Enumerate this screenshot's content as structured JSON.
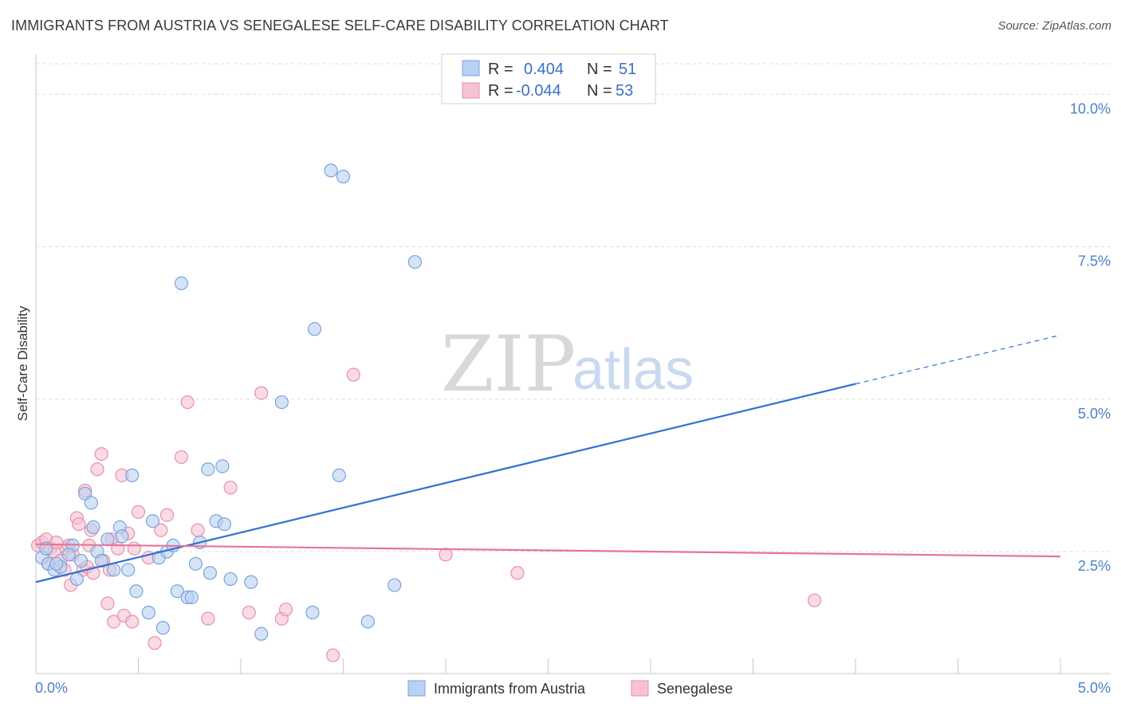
{
  "title": "IMMIGRANTS FROM AUSTRIA VS SENEGALESE SELF-CARE DISABILITY CORRELATION CHART",
  "source": "Source: ZipAtlas.com",
  "watermark": {
    "zip": "ZIP",
    "atlas": "atlas"
  },
  "colors": {
    "blue_fill": "#b9d1f2",
    "blue_stroke": "#7aa3dc",
    "blue_line": "#2f73d2",
    "pink_fill": "#f7c2d2",
    "pink_stroke": "#e691ac",
    "pink_line": "#e8739a",
    "tick_text": "#4a7fc8",
    "grid": "#dddddd"
  },
  "legend": {
    "rows": [
      {
        "r_label": "R =",
        "r_value": "0.404",
        "n_label": "N =",
        "n_value": "51"
      },
      {
        "r_label": "R =",
        "r_value": "-0.044",
        "n_label": "N =",
        "n_value": "53"
      }
    ]
  },
  "chart_data": {
    "type": "scatter",
    "title": "IMMIGRANTS FROM AUSTRIA VS SENEGALESE SELF-CARE DISABILITY CORRELATION CHART",
    "xlabel": "",
    "ylabel": "Self-Care Disability",
    "xlim": [
      0,
      5.0
    ],
    "ylim": [
      0.5,
      10.5
    ],
    "x_tick_labels": [
      "0.0%",
      "5.0%"
    ],
    "y_ticks": [
      2.5,
      5.0,
      7.5,
      10.0
    ],
    "y_tick_labels": [
      "2.5%",
      "5.0%",
      "7.5%",
      "10.0%"
    ],
    "legend_position": "bottom-center",
    "series": [
      {
        "name": "Immigrants from Austria",
        "r": 0.404,
        "n": 51,
        "trend": {
          "x0": 0.0,
          "y0": 2.0,
          "x1": 4.0,
          "y1": 5.25,
          "dash_to_x": 5.0,
          "dash_to_y": 6.05
        },
        "points": [
          [
            0.03,
            2.4
          ],
          [
            0.06,
            2.3
          ],
          [
            0.09,
            2.2
          ],
          [
            0.12,
            2.25
          ],
          [
            0.18,
            2.6
          ],
          [
            0.2,
            2.05
          ],
          [
            0.24,
            3.45
          ],
          [
            0.27,
            3.3
          ],
          [
            0.28,
            2.9
          ],
          [
            0.3,
            2.5
          ],
          [
            0.32,
            2.35
          ],
          [
            0.35,
            2.7
          ],
          [
            0.38,
            2.2
          ],
          [
            0.41,
            2.9
          ],
          [
            0.42,
            2.75
          ],
          [
            0.45,
            2.2
          ],
          [
            0.47,
            3.75
          ],
          [
            0.49,
            1.85
          ],
          [
            0.55,
            1.5
          ],
          [
            0.57,
            3.0
          ],
          [
            0.6,
            2.4
          ],
          [
            0.62,
            1.25
          ],
          [
            0.64,
            2.5
          ],
          [
            0.67,
            2.6
          ],
          [
            0.69,
            1.85
          ],
          [
            0.71,
            6.9
          ],
          [
            0.74,
            1.75
          ],
          [
            0.76,
            1.75
          ],
          [
            0.78,
            2.3
          ],
          [
            0.8,
            2.65
          ],
          [
            0.84,
            3.85
          ],
          [
            0.85,
            2.15
          ],
          [
            0.88,
            3.0
          ],
          [
            0.91,
            3.9
          ],
          [
            0.92,
            2.95
          ],
          [
            0.95,
            2.05
          ],
          [
            1.05,
            2.0
          ],
          [
            1.1,
            1.15
          ],
          [
            1.2,
            4.95
          ],
          [
            1.35,
            1.5
          ],
          [
            1.36,
            6.15
          ],
          [
            1.44,
            8.75
          ],
          [
            1.48,
            3.75
          ],
          [
            1.5,
            8.65
          ],
          [
            1.62,
            1.35
          ],
          [
            1.75,
            1.95
          ],
          [
            1.85,
            7.25
          ],
          [
            0.05,
            2.55
          ],
          [
            0.16,
            2.45
          ],
          [
            0.22,
            2.35
          ],
          [
            0.1,
            2.3
          ]
        ]
      },
      {
        "name": "Senegalese",
        "r": -0.044,
        "n": 53,
        "trend": {
          "x0": 0.0,
          "y0": 2.62,
          "x1": 5.0,
          "y1": 2.42
        },
        "points": [
          [
            0.01,
            2.6
          ],
          [
            0.03,
            2.65
          ],
          [
            0.05,
            2.7
          ],
          [
            0.07,
            2.55
          ],
          [
            0.09,
            2.5
          ],
          [
            0.1,
            2.65
          ],
          [
            0.12,
            2.35
          ],
          [
            0.14,
            2.2
          ],
          [
            0.15,
            2.55
          ],
          [
            0.16,
            2.6
          ],
          [
            0.18,
            2.45
          ],
          [
            0.2,
            3.05
          ],
          [
            0.21,
            2.95
          ],
          [
            0.23,
            2.2
          ],
          [
            0.24,
            3.5
          ],
          [
            0.25,
            2.25
          ],
          [
            0.27,
            2.85
          ],
          [
            0.28,
            2.15
          ],
          [
            0.3,
            3.85
          ],
          [
            0.32,
            4.1
          ],
          [
            0.33,
            2.35
          ],
          [
            0.35,
            1.65
          ],
          [
            0.37,
            2.7
          ],
          [
            0.38,
            1.35
          ],
          [
            0.4,
            2.55
          ],
          [
            0.42,
            3.75
          ],
          [
            0.43,
            1.45
          ],
          [
            0.45,
            2.8
          ],
          [
            0.47,
            1.35
          ],
          [
            0.48,
            2.55
          ],
          [
            0.5,
            3.15
          ],
          [
            0.55,
            2.4
          ],
          [
            0.58,
            1.0
          ],
          [
            0.61,
            2.85
          ],
          [
            0.64,
            3.1
          ],
          [
            0.71,
            4.05
          ],
          [
            0.74,
            4.95
          ],
          [
            0.79,
            2.85
          ],
          [
            0.84,
            1.4
          ],
          [
            0.95,
            3.55
          ],
          [
            1.04,
            1.5
          ],
          [
            1.1,
            5.1
          ],
          [
            1.2,
            1.4
          ],
          [
            1.22,
            1.55
          ],
          [
            1.45,
            0.8
          ],
          [
            1.55,
            5.4
          ],
          [
            2.0,
            2.45
          ],
          [
            2.35,
            2.15
          ],
          [
            3.8,
            1.7
          ],
          [
            0.06,
            2.3
          ],
          [
            0.17,
            1.95
          ],
          [
            0.26,
            2.6
          ],
          [
            0.36,
            2.2
          ]
        ]
      }
    ]
  }
}
